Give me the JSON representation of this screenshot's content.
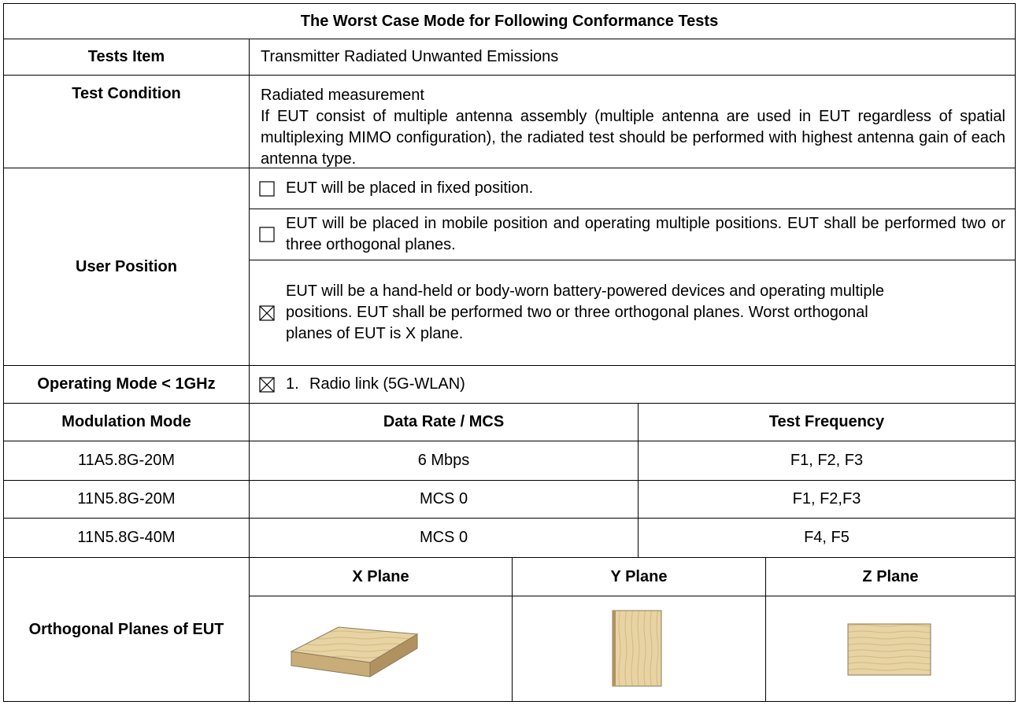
{
  "title": "The Worst Case Mode for Following Conformance Tests",
  "tests_item": {
    "label": "Tests Item",
    "value": "Transmitter Radiated Unwanted Emissions"
  },
  "test_condition": {
    "label": "Test Condition",
    "lines": [
      "Radiated measurement",
      "If EUT consist of multiple antenna assembly (multiple antenna are used in EUT regardless of spatial multiplexing MIMO configuration), the radiated test should be performed with highest antenna gain of each antenna type."
    ]
  },
  "user_position": {
    "label": "User Position",
    "options": [
      {
        "checked": false,
        "text": "EUT will be placed in fixed position."
      },
      {
        "checked": false,
        "text": "EUT will be placed in mobile position and operating multiple positions. EUT shall be performed two or three orthogonal planes."
      },
      {
        "checked": true,
        "text": "EUT will be a hand-held or body-worn battery-powered devices and operating multiple positions. EUT shall be performed two or three orthogonal planes. Worst orthogonal planes of EUT is X plane."
      }
    ]
  },
  "operating_mode": {
    "label": "Operating Mode < 1GHz",
    "checked": true,
    "number": "1.",
    "text": "Radio link (5G-WLAN)"
  },
  "modulation_table": {
    "headers": [
      "Modulation Mode",
      "Data Rate / MCS",
      "Test Frequency"
    ],
    "rows": [
      [
        "11A5.8G-20M",
        "6 Mbps",
        "F1, F2, F3"
      ],
      [
        "11N5.8G-20M",
        "MCS 0",
        "F1, F2,F3"
      ],
      [
        "11N5.8G-40M",
        "MCS 0",
        "F4, F5"
      ]
    ]
  },
  "orthogonal_planes": {
    "label": "Orthogonal Planes of EUT",
    "planes": [
      "X Plane",
      "Y Plane",
      "Z Plane"
    ]
  }
}
